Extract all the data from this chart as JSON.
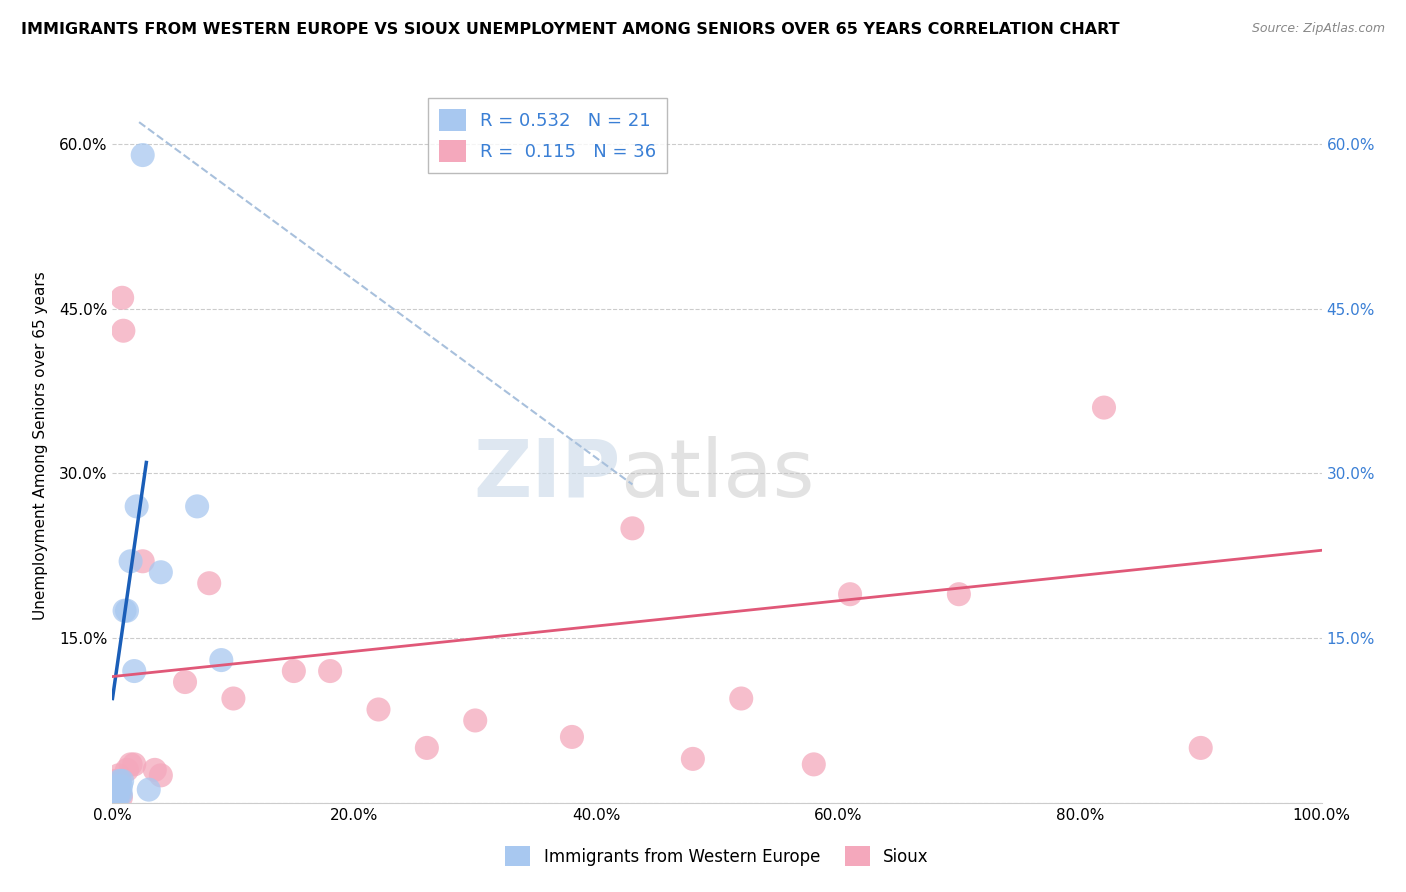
{
  "title": "IMMIGRANTS FROM WESTERN EUROPE VS SIOUX UNEMPLOYMENT AMONG SENIORS OVER 65 YEARS CORRELATION CHART",
  "source": "Source: ZipAtlas.com",
  "ylabel": "Unemployment Among Seniors over 65 years",
  "xlim": [
    0,
    1.0
  ],
  "ylim": [
    0,
    0.65
  ],
  "xticks": [
    0.0,
    0.2,
    0.4,
    0.6,
    0.8,
    1.0
  ],
  "xtick_labels": [
    "0.0%",
    "20.0%",
    "40.0%",
    "60.0%",
    "80.0%",
    "100.0%"
  ],
  "yticks": [
    0.0,
    0.15,
    0.3,
    0.45,
    0.6
  ],
  "ytick_labels_left": [
    "",
    "15.0%",
    "30.0%",
    "45.0%",
    "60.0%"
  ],
  "ytick_labels_right": [
    "",
    "15.0%",
    "30.0%",
    "45.0%",
    "60.0%"
  ],
  "R_blue": 0.532,
  "N_blue": 21,
  "R_pink": 0.115,
  "N_pink": 36,
  "blue_color": "#a8c8f0",
  "pink_color": "#f4a8bc",
  "blue_line_color": "#1a5eb8",
  "pink_line_color": "#e05878",
  "dashed_line_color": "#a8c0dc",
  "blue_points": [
    [
      0.002,
      0.005
    ],
    [
      0.003,
      0.01
    ],
    [
      0.004,
      0.005
    ],
    [
      0.004,
      0.008
    ],
    [
      0.005,
      0.012
    ],
    [
      0.005,
      0.015
    ],
    [
      0.006,
      0.01
    ],
    [
      0.006,
      0.02
    ],
    [
      0.007,
      0.008
    ],
    [
      0.007,
      0.015
    ],
    [
      0.008,
      0.02
    ],
    [
      0.01,
      0.175
    ],
    [
      0.012,
      0.175
    ],
    [
      0.015,
      0.22
    ],
    [
      0.018,
      0.12
    ],
    [
      0.02,
      0.27
    ],
    [
      0.025,
      0.59
    ],
    [
      0.03,
      0.012
    ],
    [
      0.04,
      0.21
    ],
    [
      0.07,
      0.27
    ],
    [
      0.09,
      0.13
    ]
  ],
  "pink_points": [
    [
      0.001,
      0.005
    ],
    [
      0.002,
      0.01
    ],
    [
      0.002,
      0.02
    ],
    [
      0.003,
      0.008
    ],
    [
      0.003,
      0.015
    ],
    [
      0.004,
      0.005
    ],
    [
      0.004,
      0.012
    ],
    [
      0.005,
      0.018
    ],
    [
      0.005,
      0.025
    ],
    [
      0.006,
      0.01
    ],
    [
      0.007,
      0.005
    ],
    [
      0.008,
      0.46
    ],
    [
      0.009,
      0.43
    ],
    [
      0.012,
      0.03
    ],
    [
      0.015,
      0.035
    ],
    [
      0.018,
      0.035
    ],
    [
      0.025,
      0.22
    ],
    [
      0.035,
      0.03
    ],
    [
      0.04,
      0.025
    ],
    [
      0.06,
      0.11
    ],
    [
      0.08,
      0.2
    ],
    [
      0.1,
      0.095
    ],
    [
      0.15,
      0.12
    ],
    [
      0.18,
      0.12
    ],
    [
      0.22,
      0.085
    ],
    [
      0.26,
      0.05
    ],
    [
      0.3,
      0.075
    ],
    [
      0.38,
      0.06
    ],
    [
      0.43,
      0.25
    ],
    [
      0.48,
      0.04
    ],
    [
      0.52,
      0.095
    ],
    [
      0.58,
      0.035
    ],
    [
      0.61,
      0.19
    ],
    [
      0.7,
      0.19
    ],
    [
      0.82,
      0.36
    ],
    [
      0.9,
      0.05
    ]
  ],
  "blue_trend_x": [
    0.0,
    0.028
  ],
  "blue_trend_y": [
    0.095,
    0.31
  ],
  "pink_trend_x": [
    0.0,
    1.0
  ],
  "pink_trend_y": [
    0.115,
    0.23
  ],
  "dashed_trend_x": [
    0.022,
    0.43
  ],
  "dashed_trend_y": [
    0.62,
    0.29
  ]
}
